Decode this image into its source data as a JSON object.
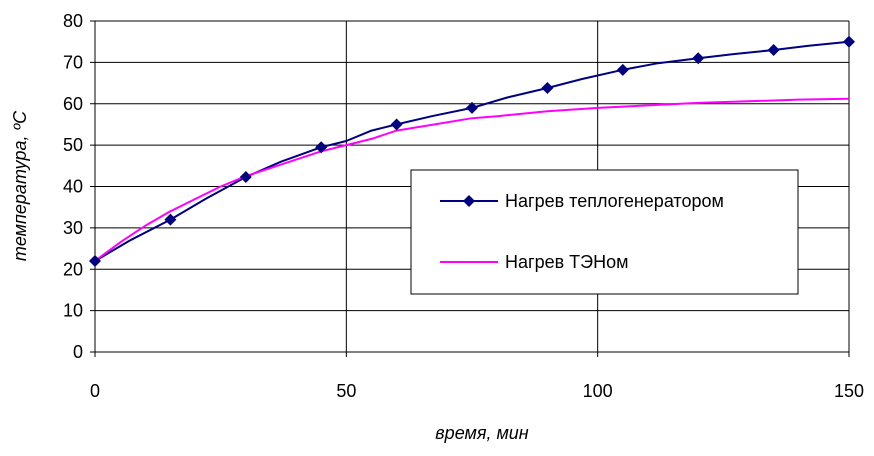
{
  "chart_data": {
    "type": "line",
    "title": "",
    "xlabel": "время, мин",
    "ylabel": "температура, ºС",
    "xlim": [
      0,
      150
    ],
    "ylim": [
      0,
      80
    ],
    "x_ticks": [
      0,
      50,
      100,
      150
    ],
    "y_ticks": [
      0,
      10,
      20,
      30,
      40,
      50,
      60,
      70,
      80
    ],
    "x_tick_labels": [
      "0",
      "50",
      "100",
      "150"
    ],
    "y_tick_labels": [
      "0",
      "10",
      "20",
      "30",
      "40",
      "50",
      "60",
      "70",
      "80"
    ],
    "grid": {
      "x": true,
      "y": true
    },
    "legend_position": "center-right",
    "series": [
      {
        "name": "Нагрев теплогенератором",
        "color": "#000080",
        "marker": "diamond",
        "x": [
          0,
          7,
          15,
          22,
          30,
          37,
          45,
          50,
          55,
          60,
          67,
          75,
          82,
          90,
          97,
          105,
          112,
          120,
          127,
          135,
          142,
          150
        ],
        "y": [
          22,
          27,
          32,
          37,
          42.3,
          46,
          49.5,
          51,
          53.5,
          55,
          57,
          59,
          61.5,
          63.8,
          66,
          68.2,
          69.8,
          71,
          72,
          73,
          74,
          75
        ]
      },
      {
        "name": "Нагрев ТЭНом",
        "color": "#ff00ff",
        "marker": "none",
        "x": [
          0,
          5,
          10,
          15,
          20,
          25,
          30,
          35,
          40,
          45,
          50,
          55,
          60,
          65,
          70,
          75,
          80,
          90,
          100,
          110,
          120,
          130,
          140,
          150
        ],
        "y": [
          22,
          26.5,
          30.5,
          34,
          37,
          40,
          42.5,
          44.5,
          46.5,
          48.5,
          50,
          51.5,
          53.5,
          54.5,
          55.5,
          56.5,
          57,
          58.2,
          59,
          59.6,
          60.2,
          60.6,
          61,
          61.2
        ]
      }
    ]
  }
}
